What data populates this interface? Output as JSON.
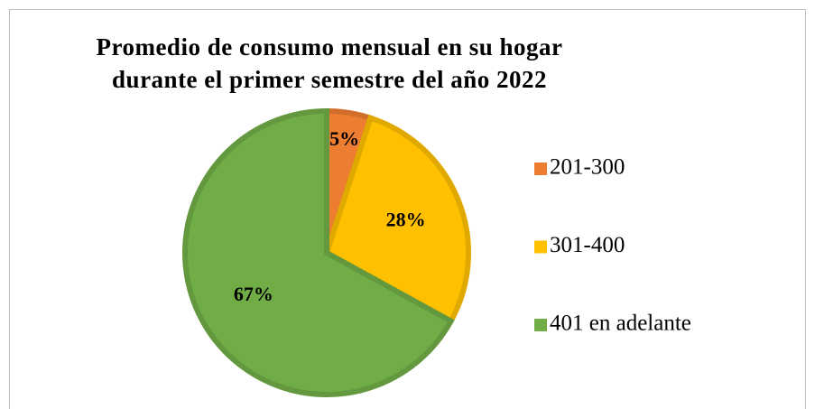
{
  "chart_data": {
    "type": "pie",
    "title": "Promedio de consumo mensual en su hogar durante el primer semestre del año 2022",
    "categories": [
      "201-300",
      "301-400",
      "401 en adelante"
    ],
    "values": [
      5,
      28,
      67
    ],
    "value_labels": [
      "5%",
      "28%",
      "67%"
    ],
    "colors": [
      "#ED7D31",
      "#FFC000",
      "#70AD47"
    ],
    "legend": "right"
  }
}
